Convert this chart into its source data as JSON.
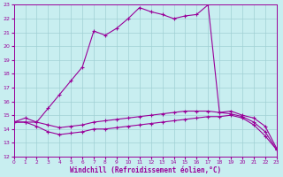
{
  "xlabel": "Windchill (Refroidissement éolien,°C)",
  "xlim": [
    0,
    23
  ],
  "ylim": [
    12,
    23
  ],
  "yticks": [
    12,
    13,
    14,
    15,
    16,
    17,
    18,
    19,
    20,
    21,
    22,
    23
  ],
  "xticks": [
    0,
    1,
    2,
    3,
    4,
    5,
    6,
    7,
    8,
    9,
    10,
    11,
    12,
    13,
    14,
    15,
    16,
    17,
    18,
    19,
    20,
    21,
    22,
    23
  ],
  "bg_color": "#c8eef0",
  "grid_color": "#a0d0d4",
  "line_color": "#990099",
  "curve1_x": [
    0,
    1,
    2,
    3,
    4,
    5,
    6,
    7,
    8,
    9,
    10,
    11,
    12,
    13,
    14,
    15,
    16,
    17,
    18,
    19,
    20,
    21,
    22,
    23
  ],
  "curve1_y": [
    14.5,
    14.5,
    14.5,
    15.5,
    16.5,
    17.5,
    18.5,
    21.1,
    20.8,
    21.3,
    22.0,
    22.8,
    22.5,
    22.3,
    22.0,
    22.2,
    22.3,
    23.0,
    15.2,
    15.3,
    15.0,
    14.8,
    14.2,
    12.6
  ],
  "curve2_x": [
    0,
    1,
    2,
    3,
    4,
    5,
    6,
    7,
    8,
    9,
    10,
    11,
    12,
    13,
    14,
    15,
    16,
    17,
    18,
    19,
    20,
    21,
    22,
    23
  ],
  "curve2_y": [
    14.5,
    14.8,
    14.5,
    14.3,
    14.1,
    14.2,
    14.3,
    14.5,
    14.6,
    14.7,
    14.8,
    14.9,
    15.0,
    15.1,
    15.2,
    15.3,
    15.3,
    15.3,
    15.2,
    15.1,
    14.9,
    14.5,
    13.8,
    12.5
  ],
  "curve3_x": [
    0,
    1,
    2,
    3,
    4,
    5,
    6,
    7,
    8,
    9,
    10,
    11,
    12,
    13,
    14,
    15,
    16,
    17,
    18,
    19,
    20,
    21,
    22,
    23
  ],
  "curve3_y": [
    14.5,
    14.5,
    14.2,
    13.8,
    13.6,
    13.7,
    13.8,
    14.0,
    14.0,
    14.1,
    14.2,
    14.3,
    14.4,
    14.5,
    14.6,
    14.7,
    14.8,
    14.9,
    14.9,
    15.0,
    14.8,
    14.3,
    13.5,
    12.5
  ]
}
